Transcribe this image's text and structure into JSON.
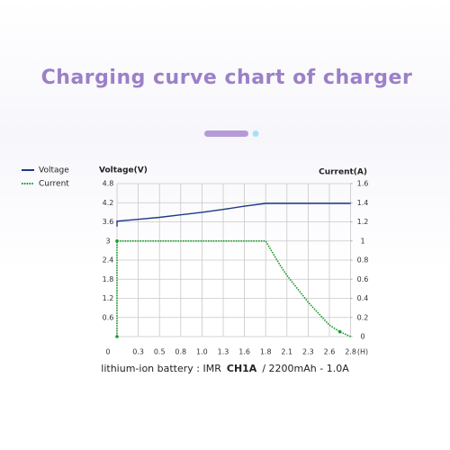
{
  "chart_data": {
    "type": "line",
    "title": "Charging curve chart of charger",
    "y_label": "Voltage(V)",
    "y2_label": "Current(A)",
    "x_unit": "(H)",
    "legend": "top-left",
    "grid": true,
    "xticks": [
      0,
      0.3,
      0.5,
      0.8,
      {
        "value": 1,
        "label": "1.0"
      },
      1.3,
      1.6,
      1.8,
      2.1,
      2.3,
      2.6,
      2.8
    ],
    "xlim": [
      0,
      2.8
    ],
    "ylim": [
      0,
      4.8
    ],
    "yticks": [
      0,
      0.6,
      1.2,
      1.8,
      2.4,
      3,
      3.6,
      4.2,
      4.8
    ],
    "y2lim": [
      0,
      1.6
    ],
    "y2ticks": [
      0,
      0.2,
      0.4,
      0.6,
      0.8,
      1,
      1.2,
      1.4,
      1.6
    ],
    "series": [
      {
        "name": "Voltage",
        "color": "#1f3a86",
        "axis": "y",
        "x": [
          0,
          0,
          0.3,
          0.5,
          0.8,
          1.0,
          1.3,
          1.6,
          1.8,
          2.8
        ],
        "values": [
          3.45,
          3.62,
          3.68,
          3.74,
          3.82,
          3.9,
          3.99,
          4.09,
          4.18,
          4.18
        ]
      },
      {
        "name": "Current",
        "color": "#1d9a2c",
        "axis": "y2",
        "x": [
          0,
          0,
          0.05,
          1.8,
          2.0,
          2.1,
          2.3,
          2.6,
          2.7,
          2.8
        ],
        "values": [
          0,
          1,
          1,
          1,
          0.75,
          0.64,
          0.36,
          0.12,
          0.05,
          0
        ]
      }
    ],
    "caption": {
      "lead": "lithium-ion battery : IMR",
      "model": "CH1A",
      "spec": "/ 2200mAh - 1.0A"
    }
  }
}
